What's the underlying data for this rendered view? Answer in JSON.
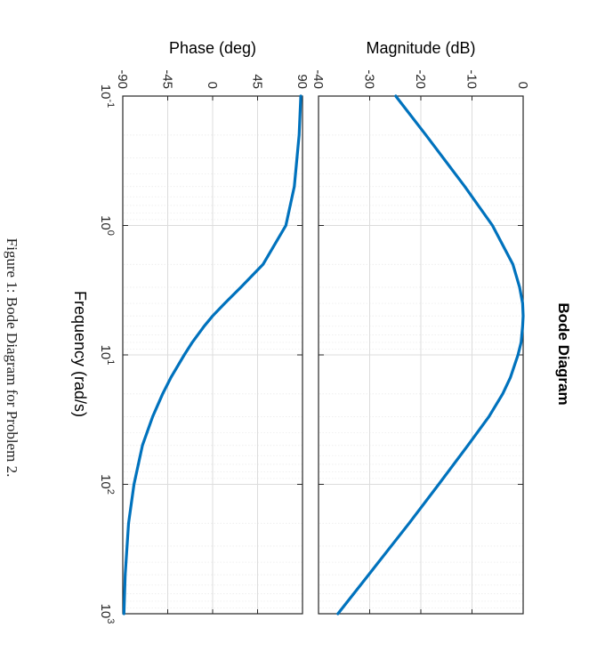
{
  "chart_data": {
    "type": "line",
    "title": "Bode Diagram",
    "xlabel": "Frequency  (rad/s)",
    "xscale": "log",
    "xlim": [
      0.1,
      1000
    ],
    "x_ticks": [
      {
        "value": 0.1,
        "base": "10",
        "exp": "-1"
      },
      {
        "value": 1,
        "base": "10",
        "exp": "0"
      },
      {
        "value": 10,
        "base": "10",
        "exp": "1"
      },
      {
        "value": 100,
        "base": "10",
        "exp": "2"
      },
      {
        "value": 1000,
        "base": "10",
        "exp": "3"
      }
    ],
    "grid": true,
    "panels": [
      {
        "name": "magnitude",
        "ylabel": "Magnitude (dB)",
        "ylim": [
          -40,
          0
        ],
        "y_ticks": [
          0,
          -10,
          -20,
          -30,
          -40
        ],
        "series": [
          {
            "name": "Magnitude",
            "x": [
              0.1,
              0.2,
              0.5,
              1,
              2,
              3,
              4,
              5,
              6,
              8,
              10,
              15,
              20,
              30,
              50,
              100,
              200,
              500,
              1000
            ],
            "y": [
              -24.9,
              -19.0,
              -11.4,
              -6.0,
              -2.0,
              -0.7,
              -0.1,
              0.0,
              -0.1,
              -0.4,
              -1.0,
              -2.5,
              -4.0,
              -6.7,
              -10.8,
              -16.5,
              -22.3,
              -30.2,
              -36.2
            ]
          }
        ]
      },
      {
        "name": "phase",
        "ylabel": "Phase (deg)",
        "ylim": [
          -90,
          90
        ],
        "y_ticks": [
          90,
          45,
          0,
          -45,
          -90
        ],
        "series": [
          {
            "name": "Phase",
            "x": [
              0.1,
              0.2,
              0.5,
              1,
              2,
              3,
              4,
              5,
              6,
              8,
              10,
              15,
              20,
              30,
              50,
              100,
              200,
              500,
              1000
            ],
            "y": [
              88.3,
              86.6,
              81.8,
              73.3,
              50.4,
              28.3,
              12.0,
              0.0,
              -8.5,
              -20.4,
              -28.4,
              -41.9,
              -50.1,
              -60.1,
              -70.3,
              -78.8,
              -84.2,
              -87.6,
              -88.8
            ]
          }
        ]
      }
    ],
    "series_color": "#0072BD",
    "orientation": "rotated 90 degrees clockwise"
  },
  "caption": "Figure 1: Bode Diagram for Problem 2."
}
